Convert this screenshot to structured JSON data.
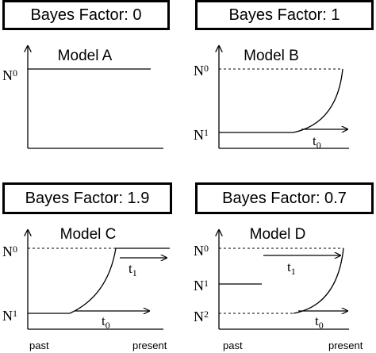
{
  "panels": [
    {
      "bayes_label": "Bayes Factor: 0",
      "model_label": "Model A",
      "y_labels": [
        {
          "base": "N",
          "sub": "0"
        }
      ]
    },
    {
      "bayes_label": "Bayes Factor: 1",
      "model_label": "Model B",
      "y_labels": [
        {
          "base": "N",
          "sub": "0"
        },
        {
          "base": "N",
          "sub": "1"
        }
      ],
      "time_labels": [
        {
          "base": "t",
          "sub": "0"
        }
      ]
    },
    {
      "bayes_label": "Bayes Factor: 1.9",
      "model_label": "Model C",
      "y_labels": [
        {
          "base": "N",
          "sub": "0"
        },
        {
          "base": "N",
          "sub": "1"
        }
      ],
      "time_labels": [
        {
          "base": "t",
          "sub": "1"
        },
        {
          "base": "t",
          "sub": "0"
        }
      ],
      "x_labels": [
        "past",
        "present"
      ]
    },
    {
      "bayes_label": "Bayes Factor: 0.7",
      "model_label": "Model D",
      "y_labels": [
        {
          "base": "N",
          "sub": "0"
        },
        {
          "base": "N",
          "sub": "1"
        },
        {
          "base": "N",
          "sub": "2"
        }
      ],
      "time_labels": [
        {
          "base": "t",
          "sub": "1"
        },
        {
          "base": "t",
          "sub": "0"
        }
      ],
      "x_labels": [
        "past",
        "present"
      ]
    }
  ]
}
